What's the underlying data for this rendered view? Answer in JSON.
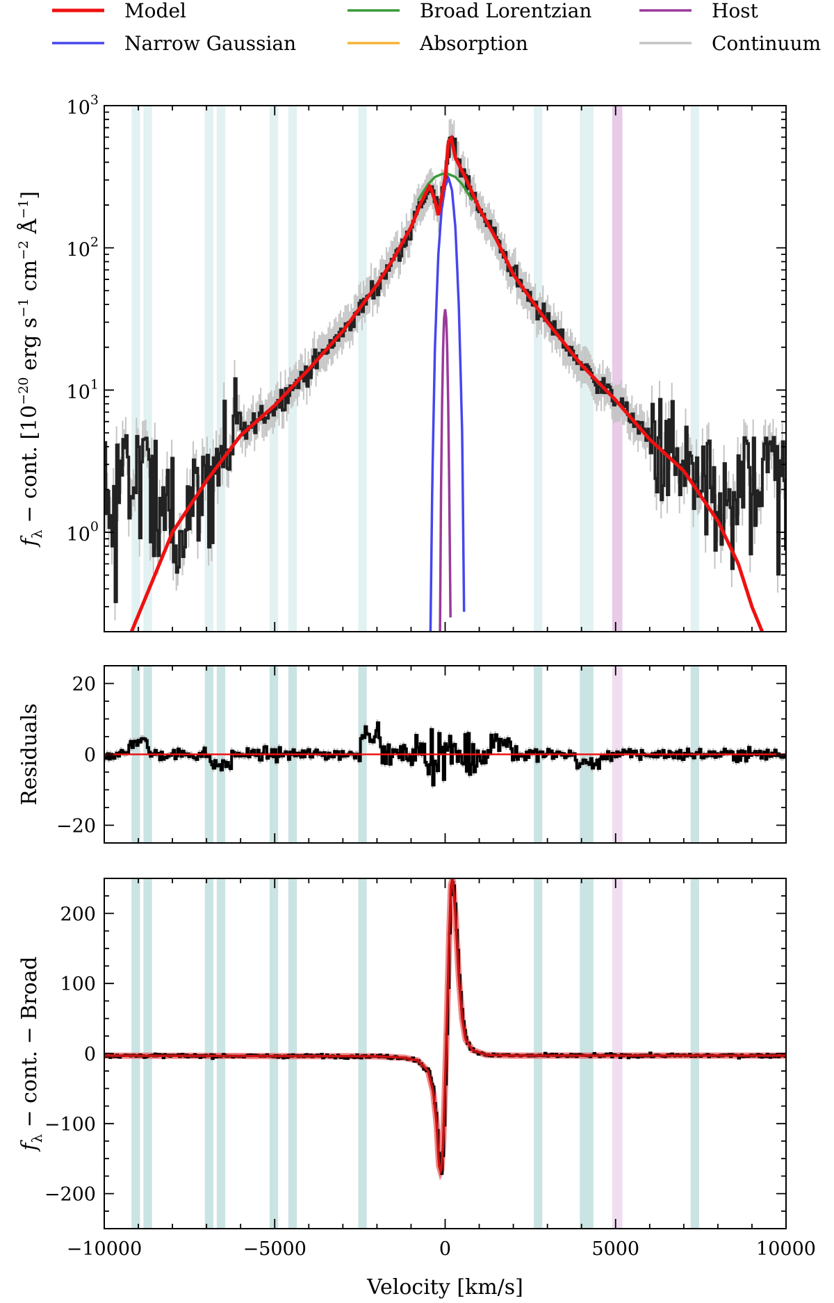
{
  "chart_data": {
    "type": "line",
    "legend": {
      "placement": "top",
      "entries": [
        {
          "name": "Model",
          "color": "#ee1111"
        },
        {
          "name": "Broad Lorentzian",
          "color": "#3a9a3a"
        },
        {
          "name": "Host",
          "color": "#9a3a9a"
        },
        {
          "name": "Narrow Gaussian",
          "color": "#4646ee"
        },
        {
          "name": "Absorption",
          "color": "#f5b436"
        },
        {
          "name": "Continuum",
          "color": "#c4c4c4"
        }
      ]
    },
    "xlabel": "Velocity [km/s]",
    "xlim": [
      -10000,
      10000
    ],
    "xticks": [
      -10000,
      -5000,
      0,
      5000,
      10000
    ],
    "xtick_labels": [
      "−10000",
      "−5000",
      "0",
      "5000",
      "10000"
    ],
    "bands_teal": [
      [
        -9200,
        -8950
      ],
      [
        -8850,
        -8600
      ],
      [
        -7050,
        -6800
      ],
      [
        -6700,
        -6450
      ],
      [
        -5150,
        -4900
      ],
      [
        -4600,
        -4350
      ],
      [
        -2550,
        -2300
      ],
      [
        2600,
        2850
      ],
      [
        3950,
        4350
      ],
      [
        7200,
        7450
      ]
    ],
    "bands_purple": [
      [
        4900,
        5200
      ]
    ],
    "panels": [
      {
        "id": "spectrum",
        "ylabel_parts": [
          "f",
          "λ",
          " − cont. [10",
          "−20",
          " erg s",
          "−1",
          " cm",
          "−2",
          " Å",
          "−1",
          "]"
        ],
        "yscale": "log",
        "ylim": [
          0.2,
          1000
        ],
        "yticks": [
          1,
          10,
          100,
          1000
        ],
        "ytick_labels": [
          [
            "10",
            "0"
          ],
          [
            "10",
            "1"
          ],
          [
            "10",
            "2"
          ],
          [
            "10",
            "3"
          ]
        ],
        "model": {
          "x": [
            -9200,
            -8000,
            -7000,
            -6000,
            -5000,
            -4000,
            -3000,
            -2000,
            -1500,
            -1000,
            -700,
            -450,
            -300,
            -200,
            0,
            100,
            180,
            300,
            600,
            1000,
            1500,
            2000,
            3000,
            4000,
            5000,
            6000,
            7000,
            8000,
            8600,
            9000,
            9300
          ],
          "y": [
            0.2,
            1.0,
            2.3,
            4.8,
            7.8,
            14,
            26,
            55,
            85,
            140,
            210,
            275,
            215,
            170,
            310,
            560,
            590,
            430,
            310,
            190,
            115,
            65,
            30,
            15,
            8.5,
            4.5,
            2.7,
            1.2,
            0.6,
            0.3,
            0.2
          ]
        },
        "broad": {
          "x": [
            -800,
            -500,
            -300,
            -100,
            0,
            100,
            300,
            500,
            800
          ],
          "y": [
            215,
            280,
            315,
            330,
            332,
            330,
            315,
            280,
            215
          ]
        },
        "narrow": {
          "x": [
            -430,
            -380,
            -300,
            -200,
            -100,
            0,
            100,
            200,
            300,
            400,
            500,
            560
          ],
          "y": [
            0.2,
            2,
            20,
            90,
            190,
            270,
            310,
            255,
            140,
            40,
            5,
            0.2
          ]
        },
        "host": {
          "x": [
            -150,
            -120,
            -90,
            -60,
            -30,
            0,
            30,
            60,
            90,
            120,
            160
          ],
          "y": [
            0.2,
            2,
            8,
            20,
            32,
            37,
            32,
            20,
            8,
            2,
            0.2
          ]
        }
      },
      {
        "id": "residuals",
        "ylabel": "Residuals",
        "yscale": "linear",
        "ylim": [
          -25,
          25
        ],
        "yticks": [
          -20,
          0,
          20
        ],
        "ytick_labels": [
          "−20",
          "0",
          "20"
        ],
        "zero_line_color": "#ee1111"
      },
      {
        "id": "narrow-residual",
        "ylabel": "fλ − cont. − Broad",
        "ylabel_parts": [
          "f",
          "λ",
          " − cont. − Broad"
        ],
        "yscale": "linear",
        "ylim": [
          -250,
          250
        ],
        "yticks": [
          -200,
          -100,
          0,
          100,
          200
        ],
        "ytick_labels": [
          "−200",
          "−100",
          "0",
          "100",
          "200"
        ],
        "model": {
          "x": [
            -10000,
            -2000,
            -1200,
            -800,
            -500,
            -350,
            -250,
            -180,
            -120,
            -60,
            0,
            60,
            120,
            170,
            220,
            300,
            400,
            500,
            600,
            800,
            1200,
            2000,
            10000
          ],
          "y": [
            -3,
            -4,
            -6,
            -10,
            -25,
            -55,
            -100,
            -160,
            -170,
            -130,
            -40,
            60,
            170,
            240,
            250,
            200,
            110,
            50,
            20,
            5,
            -2,
            -3,
            -3
          ]
        }
      }
    ]
  }
}
